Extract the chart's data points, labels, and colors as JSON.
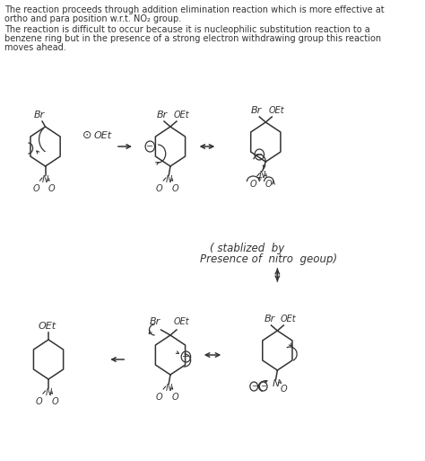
{
  "bg_color": "#ffffff",
  "figsize": [
    4.74,
    5.13
  ],
  "dpi": 100,
  "para1_lines": [
    "The reaction proceeds through addition elimination reaction which is more effective at",
    "ortho and para position w.r.t. NO₂ group."
  ],
  "para2_lines": [
    "The reaction is difficult to occur because it is nucleophilic substitution reaction to a",
    "benzene ring but in the presence of a strong electron withdrawing group this reaction",
    "moves ahead."
  ],
  "stab_line1": "( stablized  by",
  "stab_line2": "Presence of  nitro  geoup)",
  "text_fs": 7.0,
  "lw": 1.1,
  "color": "#333333"
}
